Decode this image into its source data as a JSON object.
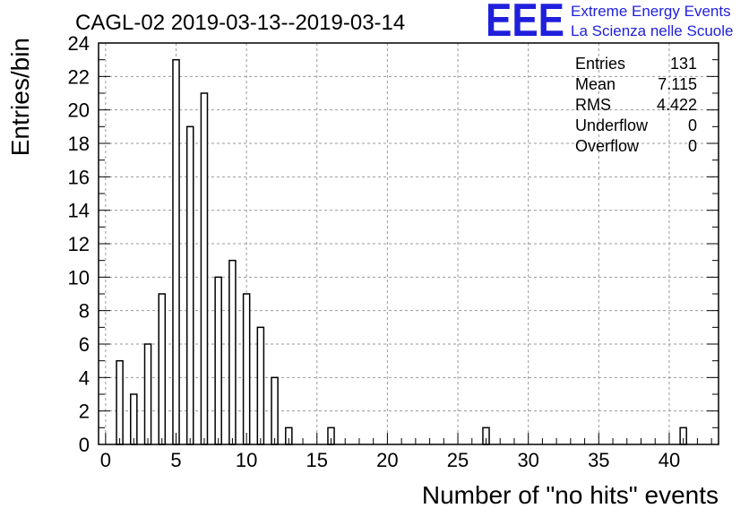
{
  "chart_data": {
    "type": "bar",
    "title": "CAGL-02 2019-03-13--2019-03-14",
    "xlabel": "Number of \"no hits\" events",
    "ylabel": "Entries/bin",
    "xlim": [
      -0.5,
      43.5
    ],
    "ylim": [
      0,
      24
    ],
    "xticks": [
      0,
      5,
      10,
      15,
      20,
      25,
      30,
      35,
      40
    ],
    "yticks": [
      0,
      2,
      4,
      6,
      8,
      10,
      12,
      14,
      16,
      18,
      20,
      22,
      24
    ],
    "grid": true,
    "bin_width": 1,
    "bar_fraction": 0.45,
    "x": [
      1,
      2,
      3,
      4,
      5,
      6,
      7,
      8,
      9,
      10,
      11,
      12,
      13,
      16,
      27,
      41
    ],
    "values": [
      5,
      3,
      6,
      9,
      23,
      19,
      21,
      10,
      11,
      9,
      7,
      4,
      1,
      1,
      1,
      1
    ]
  },
  "stats_box": {
    "rows": [
      {
        "label": "Entries",
        "value": "131"
      },
      {
        "label": "Mean",
        "value": "7.115"
      },
      {
        "label": "RMS",
        "value": "4.422"
      },
      {
        "label": "Underflow",
        "value": "0"
      },
      {
        "label": "Overflow",
        "value": "0"
      }
    ]
  },
  "logo": {
    "letters": "EEE",
    "line1": "Extreme Energy Events",
    "line2": "La Scienza nelle Scuole",
    "color": "#1f1fdc"
  }
}
